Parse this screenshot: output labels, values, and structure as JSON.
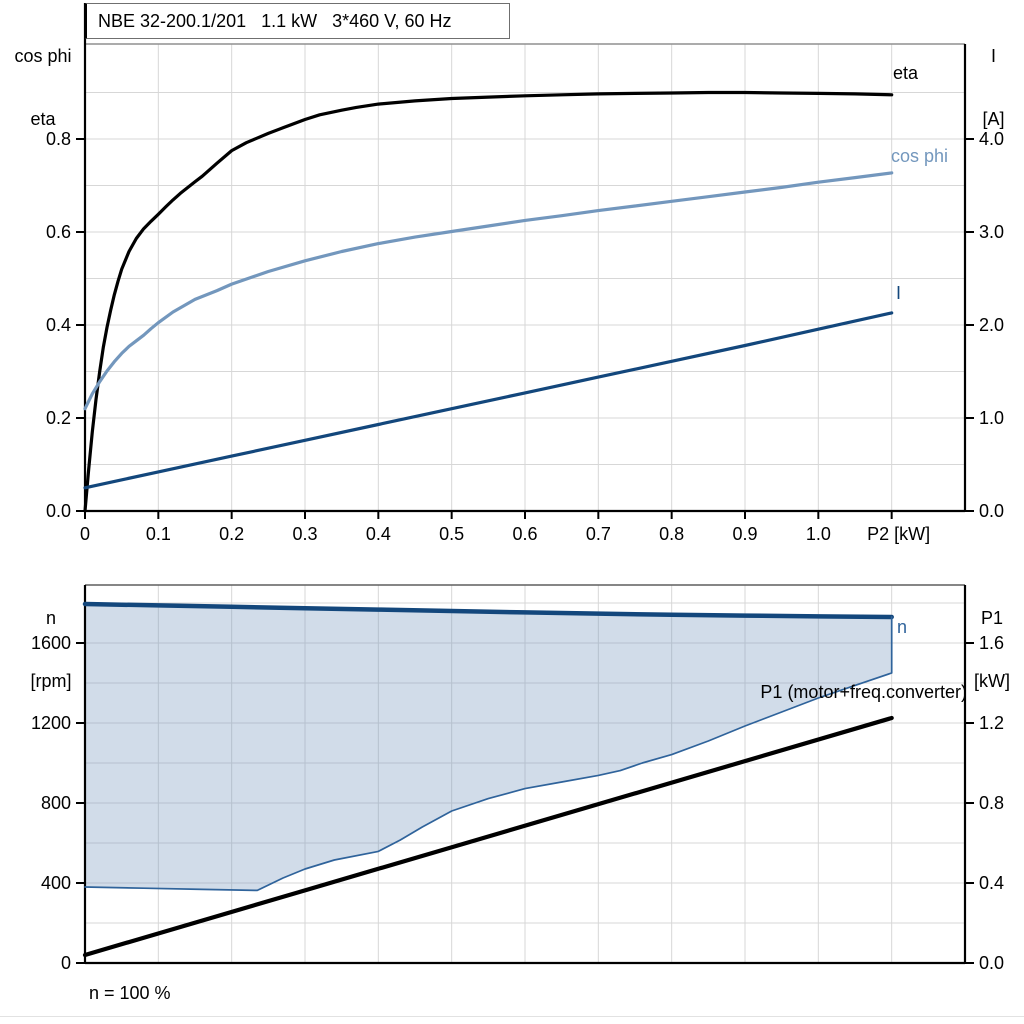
{
  "colors": {
    "black": "#000000",
    "navy": "#13477c",
    "navy_thin": "#2f639b",
    "light_blue": "#7397bd",
    "grid": "#d7d7d7",
    "axis": "#000000",
    "frame_top_upper": "#8f8f8f",
    "frame_top_lower": "#5f5f5f",
    "region_fill": "rgba(113,146,186,0.32)"
  },
  "chart_data": [
    {
      "type": "line",
      "title": "NBE 32-200.1/201   1.1 kW   3*460 V, 60 Hz",
      "xlabel": "P2 [kW]",
      "x_axis": {
        "min": 0,
        "max": 1.2,
        "grid_step": 0.1,
        "grid_max": 1.1,
        "axis_label": "P2 [kW]",
        "axis_label_v": 1.1,
        "ticks": [
          {
            "v": 0,
            "label": "0"
          },
          {
            "v": 0.1,
            "label": "0.1"
          },
          {
            "v": 0.2,
            "label": "0.2"
          },
          {
            "v": 0.3,
            "label": "0.3"
          },
          {
            "v": 0.4,
            "label": "0.4"
          },
          {
            "v": 0.5,
            "label": "0.5"
          },
          {
            "v": 0.6,
            "label": "0.6"
          },
          {
            "v": 0.7,
            "label": "0.7"
          },
          {
            "v": 0.8,
            "label": "0.8"
          },
          {
            "v": 0.9,
            "label": "0.9"
          },
          {
            "v": 1.0,
            "label": "1.0"
          }
        ]
      },
      "left_axis": {
        "header": [
          "cos phi",
          "eta"
        ],
        "min": 0,
        "max": 1.0,
        "grid_step": 0.1,
        "ticks": [
          {
            "v": 0.0,
            "label": "0.0"
          },
          {
            "v": 0.2,
            "label": "0.2"
          },
          {
            "v": 0.4,
            "label": "0.4"
          },
          {
            "v": 0.6,
            "label": "0.6"
          },
          {
            "v": 0.8,
            "label": "0.8"
          }
        ]
      },
      "right_axis": {
        "header": [
          "I",
          "[A]"
        ],
        "min": 0,
        "max": 5.0,
        "ticks": [
          {
            "v": 0.0,
            "label": "0.0"
          },
          {
            "v": 1.0,
            "label": "1.0"
          },
          {
            "v": 2.0,
            "label": "2.0"
          },
          {
            "v": 3.0,
            "label": "3.0"
          },
          {
            "v": 4.0,
            "label": "4.0"
          }
        ]
      },
      "series": [
        {
          "name": "eta",
          "label": "eta",
          "axis": "left",
          "color_key": "black",
          "width": 3.2,
          "points": [
            [
              0,
              0
            ],
            [
              0.005,
              0.09
            ],
            [
              0.01,
              0.17
            ],
            [
              0.015,
              0.24
            ],
            [
              0.02,
              0.3
            ],
            [
              0.025,
              0.352
            ],
            [
              0.03,
              0.395
            ],
            [
              0.035,
              0.432
            ],
            [
              0.04,
              0.465
            ],
            [
              0.045,
              0.494
            ],
            [
              0.05,
              0.52
            ],
            [
              0.06,
              0.558
            ],
            [
              0.07,
              0.586
            ],
            [
              0.08,
              0.607
            ],
            [
              0.09,
              0.623
            ],
            [
              0.1,
              0.638
            ],
            [
              0.11,
              0.654
            ],
            [
              0.12,
              0.669
            ],
            [
              0.13,
              0.683
            ],
            [
              0.15,
              0.708
            ],
            [
              0.16,
              0.72
            ],
            [
              0.18,
              0.748
            ],
            [
              0.2,
              0.775
            ],
            [
              0.22,
              0.792
            ],
            [
              0.25,
              0.812
            ],
            [
              0.27,
              0.824
            ],
            [
              0.3,
              0.842
            ],
            [
              0.32,
              0.852
            ],
            [
              0.35,
              0.862
            ],
            [
              0.37,
              0.868
            ],
            [
              0.4,
              0.875
            ],
            [
              0.45,
              0.882
            ],
            [
              0.5,
              0.887
            ],
            [
              0.55,
              0.89
            ],
            [
              0.6,
              0.893
            ],
            [
              0.65,
              0.895
            ],
            [
              0.7,
              0.897
            ],
            [
              0.75,
              0.898
            ],
            [
              0.8,
              0.899
            ],
            [
              0.85,
              0.9
            ],
            [
              0.9,
              0.9
            ],
            [
              0.95,
              0.899
            ],
            [
              1,
              0.898
            ],
            [
              1.05,
              0.897
            ],
            [
              1.1,
              0.895
            ]
          ]
        },
        {
          "name": "cos phi",
          "label": "cos phi",
          "axis": "left",
          "color_key": "light_blue",
          "width": 3.2,
          "points": [
            [
              0,
              0.22
            ],
            [
              0.01,
              0.252
            ],
            [
              0.02,
              0.278
            ],
            [
              0.03,
              0.301
            ],
            [
              0.04,
              0.321
            ],
            [
              0.05,
              0.339
            ],
            [
              0.06,
              0.354
            ],
            [
              0.07,
              0.366
            ],
            [
              0.08,
              0.378
            ],
            [
              0.09,
              0.392
            ],
            [
              0.1,
              0.405
            ],
            [
              0.12,
              0.428
            ],
            [
              0.15,
              0.455
            ],
            [
              0.18,
              0.474
            ],
            [
              0.2,
              0.488
            ],
            [
              0.25,
              0.515
            ],
            [
              0.3,
              0.538
            ],
            [
              0.35,
              0.558
            ],
            [
              0.4,
              0.575
            ],
            [
              0.45,
              0.589
            ],
            [
              0.5,
              0.601
            ],
            [
              0.55,
              0.613
            ],
            [
              0.6,
              0.625
            ],
            [
              0.65,
              0.635
            ],
            [
              0.7,
              0.646
            ],
            [
              0.75,
              0.656
            ],
            [
              0.8,
              0.666
            ],
            [
              0.85,
              0.676
            ],
            [
              0.9,
              0.686
            ],
            [
              0.95,
              0.696
            ],
            [
              1,
              0.707
            ],
            [
              1.05,
              0.717
            ],
            [
              1.1,
              0.727
            ]
          ]
        },
        {
          "name": "I",
          "label": "I",
          "axis": "right",
          "color_key": "navy",
          "width": 3.2,
          "points": [
            [
              0,
              0.25
            ],
            [
              0.1,
              0.42
            ],
            [
              0.2,
              0.59
            ],
            [
              0.3,
              0.76
            ],
            [
              0.4,
              0.93
            ],
            [
              0.5,
              1.1
            ],
            [
              0.6,
              1.27
            ],
            [
              0.7,
              1.44
            ],
            [
              0.8,
              1.61
            ],
            [
              0.9,
              1.78
            ],
            [
              1,
              1.955
            ],
            [
              1.1,
              2.13
            ]
          ]
        }
      ]
    },
    {
      "type": "line",
      "title": "",
      "xlabel": "",
      "x_axis": {
        "min": 0,
        "max": 1.2,
        "grid_step": 0.1,
        "grid_max": 1.1,
        "ticks": []
      },
      "left_axis": {
        "header": [
          "n",
          "[rpm]"
        ],
        "min": 0,
        "max": 1890,
        "grid_step": 200,
        "ticks": [
          {
            "v": 0,
            "label": "0"
          },
          {
            "v": 400,
            "label": "400"
          },
          {
            "v": 800,
            "label": "800"
          },
          {
            "v": 1200,
            "label": "1200"
          },
          {
            "v": 1600,
            "label": "1600"
          }
        ]
      },
      "right_axis": {
        "header": [
          "P1",
          "[kW]"
        ],
        "min": 0,
        "max": 1.89,
        "ticks": [
          {
            "v": 0.0,
            "label": "0.0"
          },
          {
            "v": 0.4,
            "label": "0.4"
          },
          {
            "v": 0.8,
            "label": "0.8"
          },
          {
            "v": 1.2,
            "label": "1.2"
          },
          {
            "v": 1.6,
            "label": "1.6"
          }
        ]
      },
      "series": [
        {
          "name": "n",
          "label": "n",
          "axis": "left",
          "color_key": "navy",
          "width": 4.5,
          "points": [
            [
              0,
              1795
            ],
            [
              0.1,
              1788
            ],
            [
              0.2,
              1781
            ],
            [
              0.3,
              1774
            ],
            [
              0.4,
              1767
            ],
            [
              0.5,
              1760
            ],
            [
              0.6,
              1753
            ],
            [
              0.7,
              1747
            ],
            [
              0.8,
              1741
            ],
            [
              0.9,
              1737
            ],
            [
              1,
              1733
            ],
            [
              1.1,
              1730
            ]
          ]
        },
        {
          "name": "speed-range-lower",
          "label": "",
          "axis": "left",
          "color_key": "navy_thin",
          "width": 1.7,
          "close_right_to": "n",
          "points": [
            [
              0,
              380
            ],
            [
              0.08,
              374
            ],
            [
              0.16,
              368
            ],
            [
              0.235,
              363
            ],
            [
              0.27,
              425
            ],
            [
              0.3,
              470
            ],
            [
              0.34,
              515
            ],
            [
              0.4,
              558
            ],
            [
              0.43,
              615
            ],
            [
              0.46,
              680
            ],
            [
              0.5,
              760
            ],
            [
              0.55,
              822
            ],
            [
              0.6,
              872
            ],
            [
              0.65,
              905
            ],
            [
              0.7,
              938
            ],
            [
              0.73,
              962
            ],
            [
              0.76,
              1000
            ],
            [
              0.8,
              1042
            ],
            [
              0.85,
              1110
            ],
            [
              0.9,
              1185
            ],
            [
              0.95,
              1255
            ],
            [
              1,
              1325
            ],
            [
              1.05,
              1388
            ],
            [
              1.1,
              1450
            ]
          ]
        },
        {
          "name": "P1",
          "label": "P1 (motor+freq.converter)",
          "axis": "right",
          "color_key": "black",
          "width": 4.2,
          "points": [
            [
              0,
              0.04
            ],
            [
              1.1,
              1.225
            ]
          ]
        }
      ],
      "region": {
        "upper": "n",
        "lower": "speed-range-lower",
        "fill_key": "region_fill"
      },
      "annotation": "P1 (motor+freq.converter)",
      "note": "n = 100 %"
    }
  ]
}
